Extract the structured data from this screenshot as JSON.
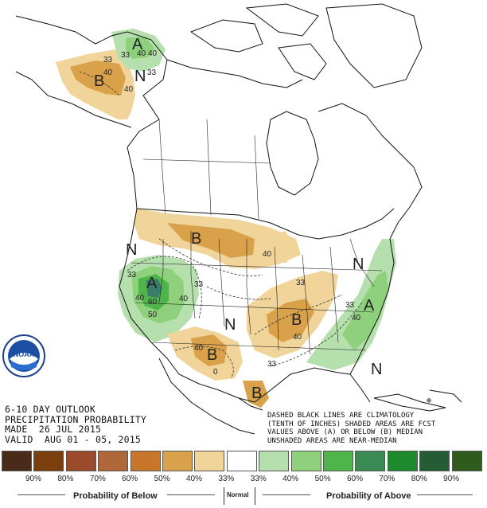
{
  "map": {
    "labels": {
      "alaska_a": "A",
      "alaska_b": "B",
      "alaska_n": "N",
      "north_b": "B",
      "west_n": "N",
      "sw_a": "A",
      "central_n": "N",
      "south_b": "B",
      "tx_b": "B",
      "se_b": "B",
      "ne_n": "N",
      "se_a": "A",
      "fl_n": "N"
    },
    "contours": {
      "ak_33": "33",
      "ak_40": "40",
      "ak_33b": "33",
      "ak_40b": "40",
      "ak_33c": "33",
      "ak_40c": "40",
      "ak_40d": "40",
      "ak_33d": "33",
      "w_33": "33",
      "w_40": "40",
      "w_50": "50",
      "w_60": "60",
      "w_40b": "40",
      "w_33b": "33",
      "n_40": "40",
      "s_40": "40",
      "s_33": "33",
      "s_0": "0",
      "se_33": "33",
      "se_40": "40",
      "se_40b": "40",
      "e_33": "33"
    }
  },
  "info": {
    "line1": "6-10 DAY OUTLOOK",
    "line2": "PRECIPITATION PROBABILITY",
    "line3": "MADE  26 JUL 2015",
    "line4": "VALID  AUG 01 - 05, 2015"
  },
  "note": {
    "line1": "DASHED BLACK LINES ARE CLIMATOLOGY",
    "line2": "(TENTH OF INCHES) SHADED AREAS ARE FCST",
    "line3": "VALUES ABOVE (A) OR BELOW (B) MEDIAN",
    "line4": "UNSHADED AREAS ARE NEAR-MEDIAN"
  },
  "logo": {
    "text": "NOAA"
  },
  "legend": {
    "percent_labels": [
      "90%",
      "80%",
      "70%",
      "60%",
      "50%",
      "40%",
      "33%",
      "33%",
      "40%",
      "50%",
      "60%",
      "70%",
      "80%",
      "90%"
    ],
    "colors": [
      "#4a2b1a",
      "#7a3f0c",
      "#9c4a2c",
      "#b0683a",
      "#c8762c",
      "#d9a24a",
      "#f0d49a",
      "#ffffff",
      "#b5dfac",
      "#8fd07c",
      "#4fb44a",
      "#3a8a54",
      "#1e8a2e",
      "#245c35",
      "#2f5c1c"
    ],
    "below_label": "Probability of Below",
    "normal_label": "Normal",
    "above_label": "Probability of Above"
  }
}
